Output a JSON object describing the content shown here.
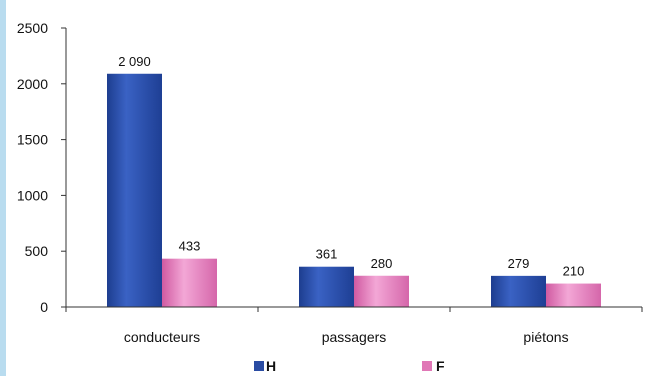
{
  "chart_data": {
    "type": "bar",
    "categories": [
      "conducteurs",
      "passagers",
      "piétons"
    ],
    "series": [
      {
        "name": "H",
        "values": [
          2090,
          361,
          279
        ],
        "labels": [
          "2 090",
          "361",
          "279"
        ],
        "color": "#2a4ca3"
      },
      {
        "name": "F",
        "values": [
          433,
          280,
          210
        ],
        "labels": [
          "433",
          "280",
          "210"
        ],
        "color": "#e077b6"
      }
    ],
    "title": "",
    "xlabel": "",
    "ylabel": "",
    "ylim": [
      0,
      2500
    ],
    "yticks": [
      0,
      500,
      1000,
      1500,
      2000,
      2500
    ],
    "grid": false,
    "legend": "bottom"
  }
}
